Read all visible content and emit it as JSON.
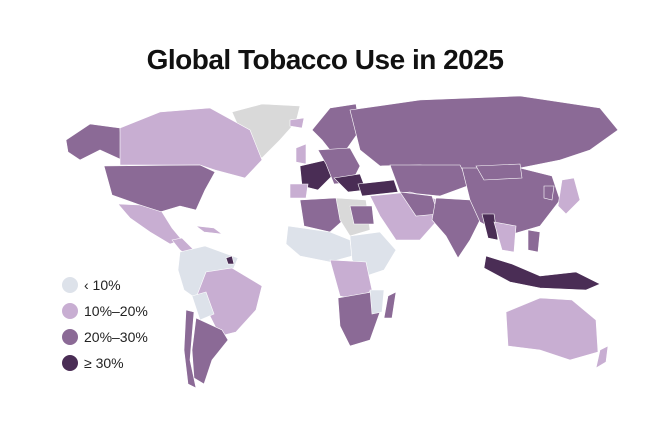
{
  "title": "Global Tobacco Use in 2025",
  "colors": {
    "lt10": "#dde2ea",
    "10to20": "#c8aed2",
    "20to30": "#8b6a96",
    "gte30": "#4a2d55",
    "nodata": "#d9d9d9"
  },
  "legend": [
    {
      "label": "‹ 10%",
      "color": "#dde2ea"
    },
    {
      "label": "10%–20%",
      "color": "#c8aed2"
    },
    {
      "label": "20%–30%",
      "color": "#8b6a96"
    },
    {
      "label": "≥ 30%",
      "color": "#4a2d55"
    }
  ]
}
